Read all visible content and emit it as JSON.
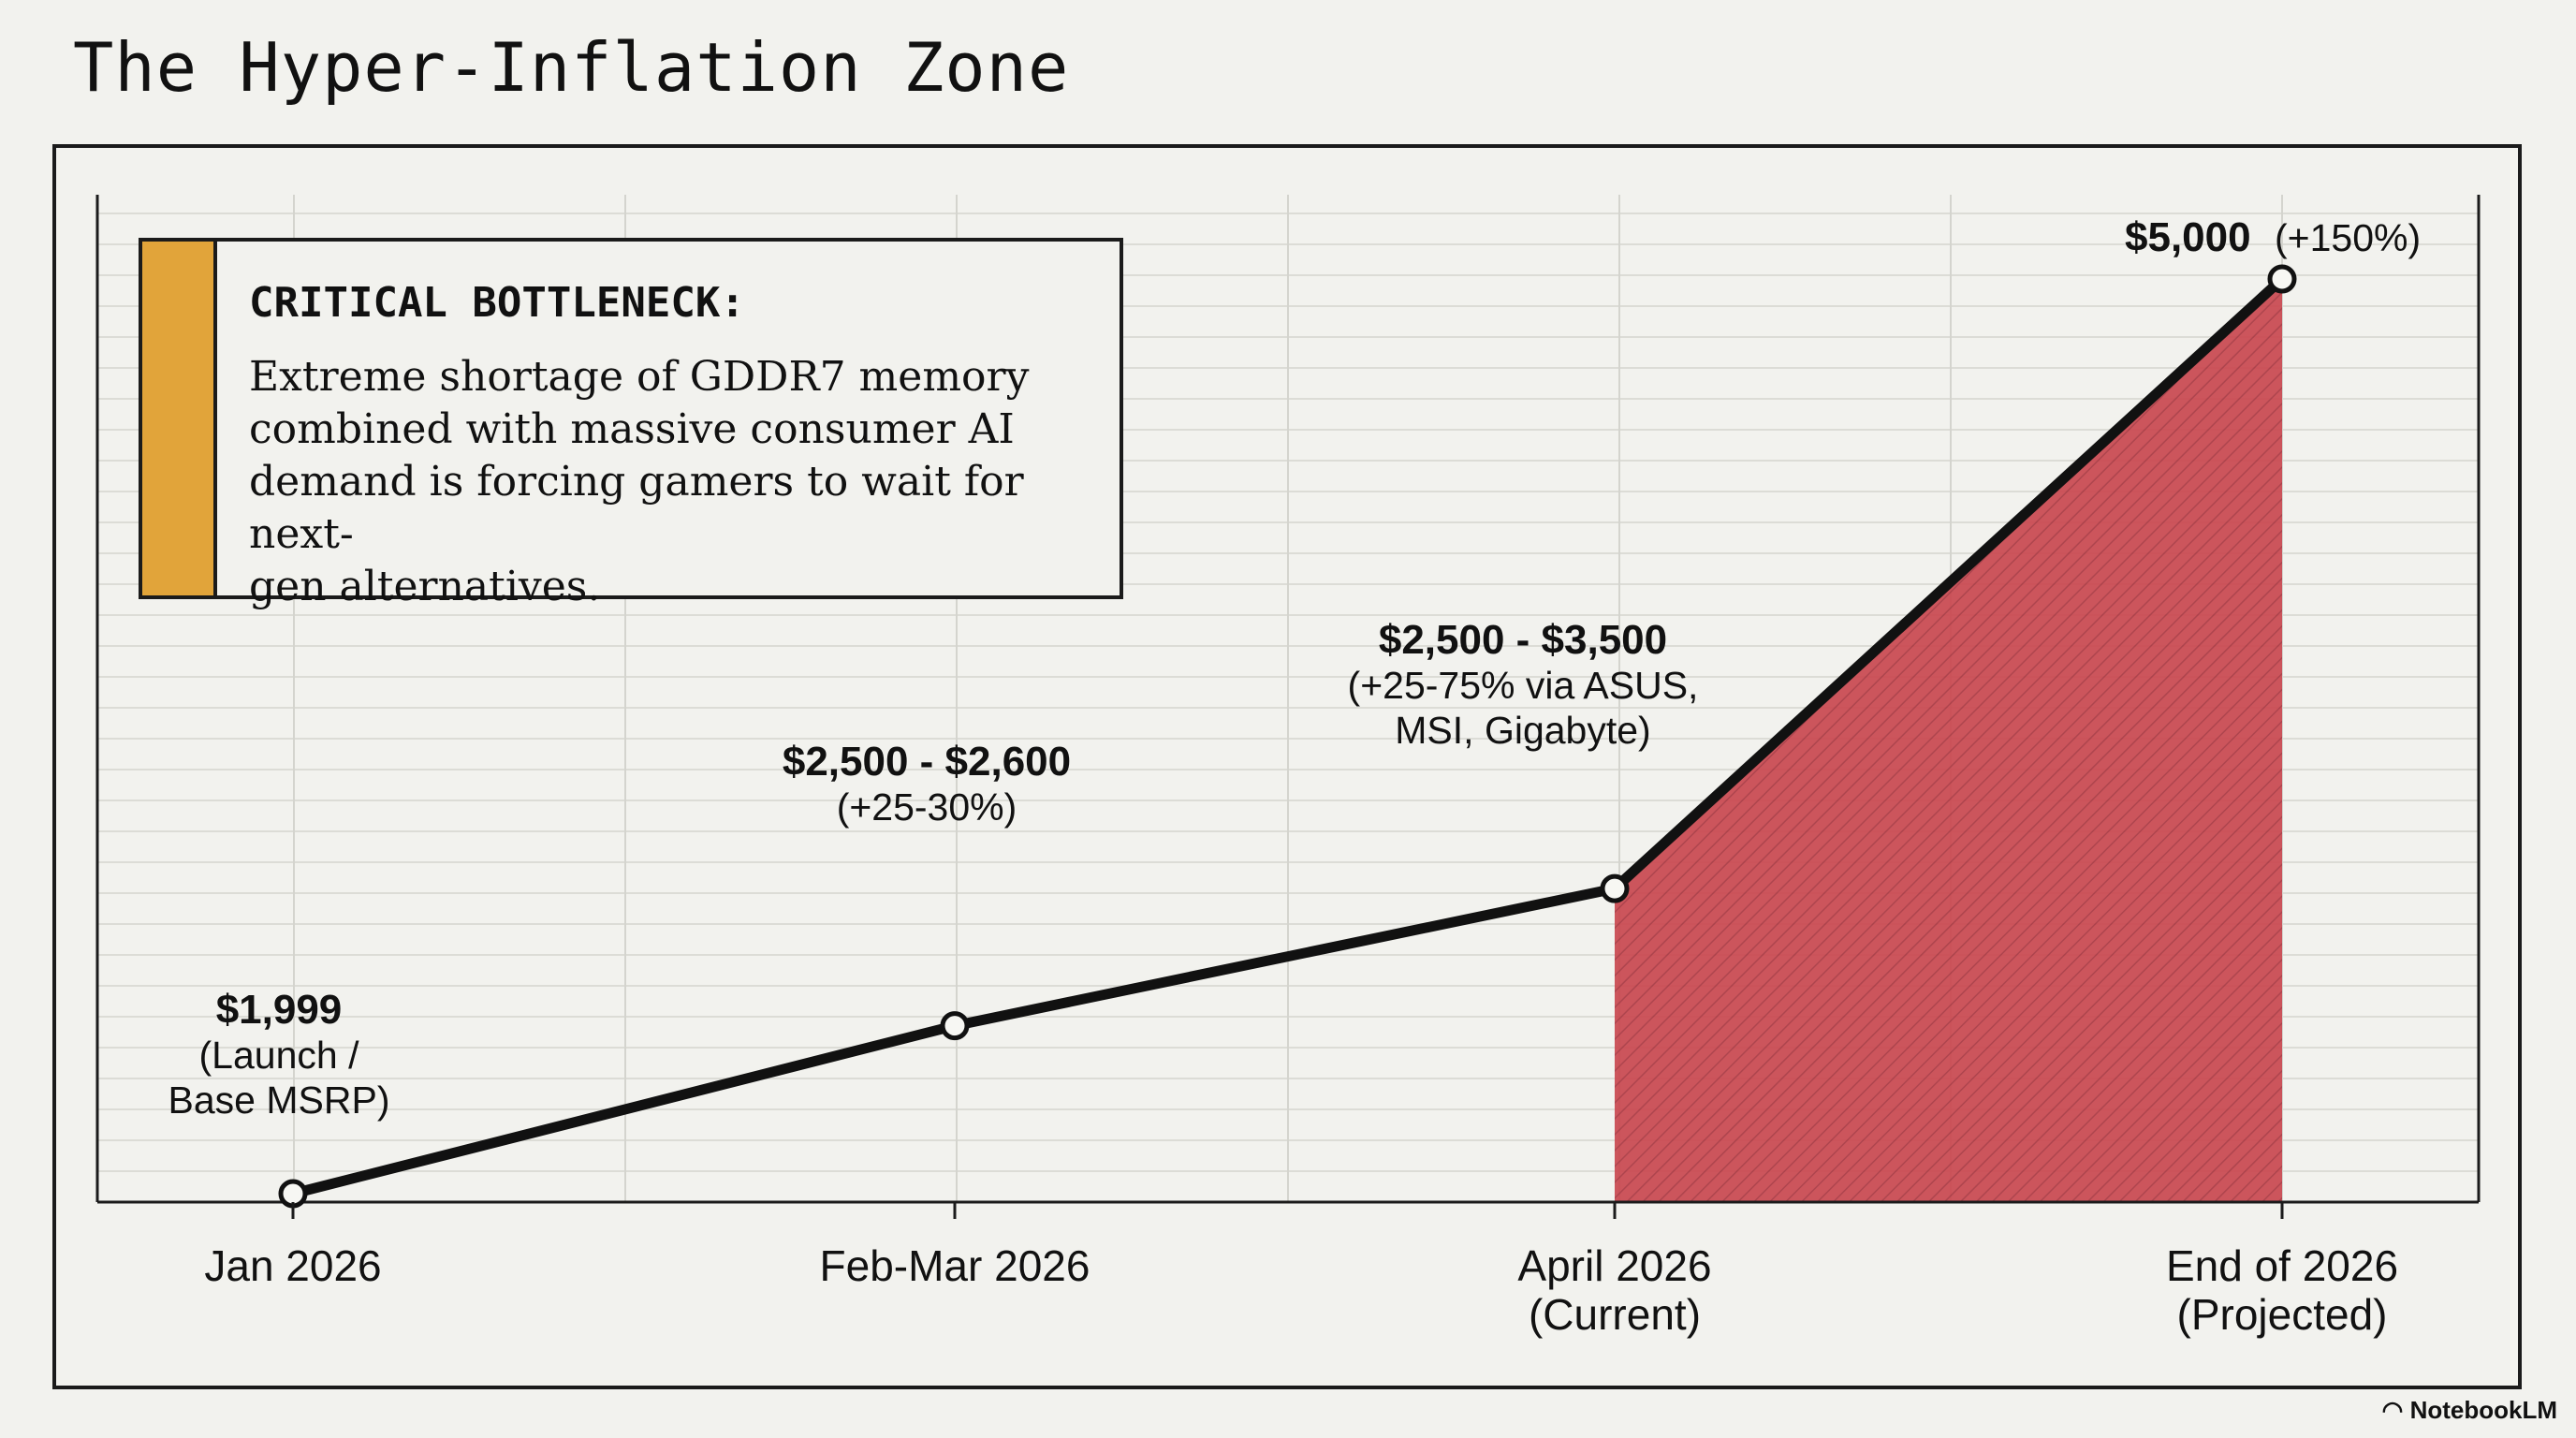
{
  "title": "The Hyper-Inflation Zone",
  "callout": {
    "heading": "CRITICAL BOTTLENECK:",
    "text_lines": [
      "Extreme shortage of GDDR7 memory",
      "combined with massive consumer AI",
      "demand is forcing gamers to wait for next-",
      "gen alternatives."
    ]
  },
  "watermark": "NotebookLM",
  "colors": {
    "background": "#f2f2ee",
    "accent_bar": "#e1a43a",
    "shaded_area": "#c9474f",
    "line": "#111111"
  },
  "chart_data": {
    "type": "line",
    "categories": [
      [
        "Jan 2026"
      ],
      [
        "Feb-Mar 2026"
      ],
      [
        "April 2026",
        "(Current)"
      ],
      [
        "End of 2026",
        "(Projected)"
      ]
    ],
    "values": [
      1999,
      2550,
      3000,
      5000
    ],
    "ylim": [
      1999,
      5000
    ],
    "grid": true,
    "shaded_region": {
      "from_index": 2,
      "to_index": 3,
      "label": "Hyper-Inflation Zone"
    },
    "point_labels": [
      {
        "bold": "$1,999",
        "normal": [
          "(Launch /",
          "Base MSRP)"
        ]
      },
      {
        "bold": "$2,500 - $2,600",
        "normal": [
          "(+25-30%)"
        ]
      },
      {
        "bold": "$2,500 - $3,500",
        "normal": [
          "(+25-75% via ASUS,",
          "MSI, Gigabyte)"
        ]
      },
      {
        "bold": "$5,000",
        "normal": [
          "(+150%)"
        ]
      }
    ]
  }
}
